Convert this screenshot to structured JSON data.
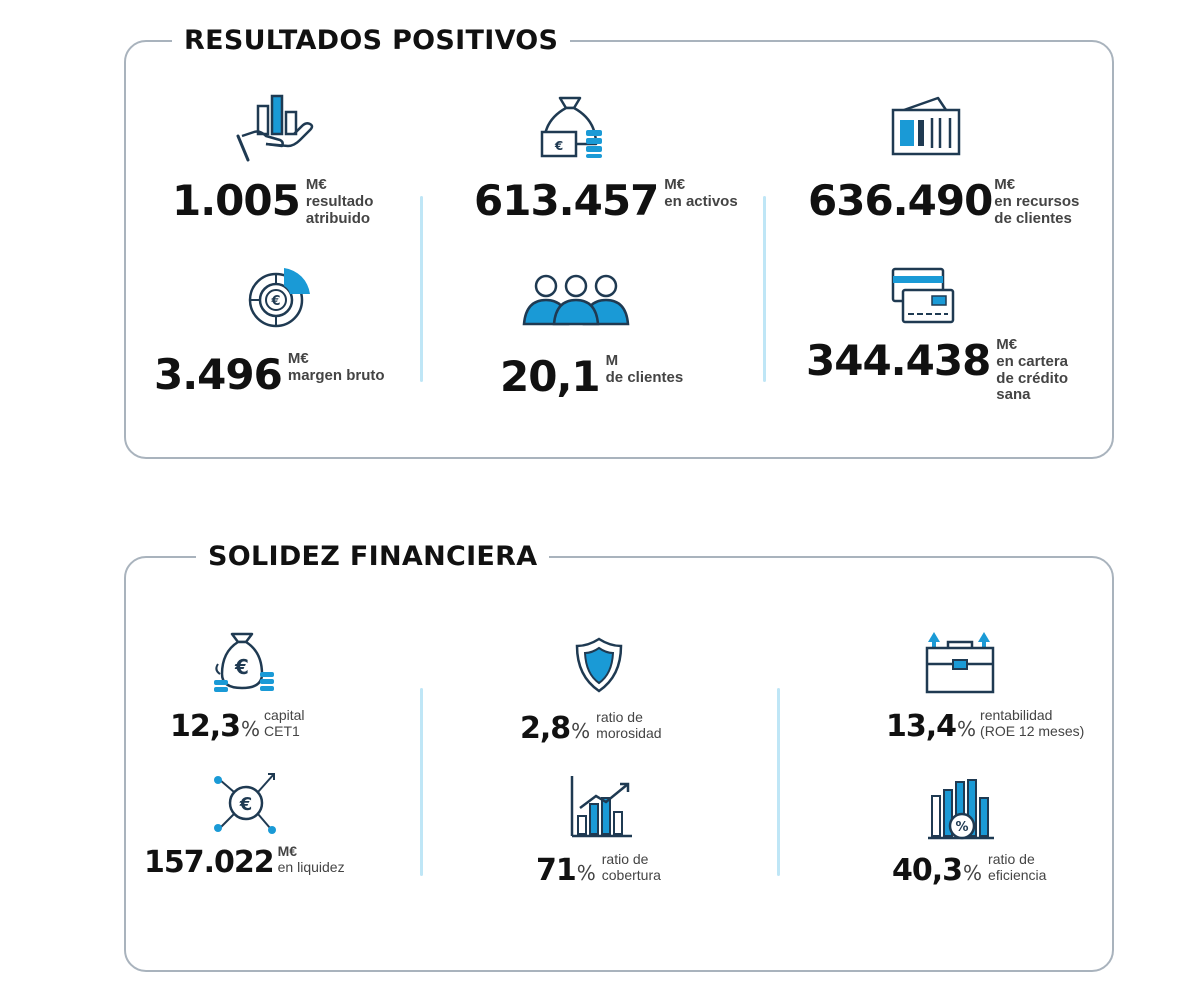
{
  "sections": {
    "resultados": {
      "title": "RESULTADOS POSITIVOS",
      "metrics": {
        "resultado": {
          "value": "1.005",
          "unit": "M€",
          "label1": "resultado",
          "label2": "atribuido",
          "icon": "hand-bar-chart-icon"
        },
        "activos": {
          "value": "613.457",
          "unit": "M€",
          "label1": "en activos",
          "icon": "money-bag-coins-icon"
        },
        "recursos": {
          "value": "636.490",
          "unit": "M€",
          "label1": "en recursos",
          "label2": "de clientes",
          "icon": "wallet-icon"
        },
        "margen": {
          "value": "3.496",
          "unit": "M€",
          "label1": "margen bruto",
          "icon": "euro-donut-chart-icon"
        },
        "clientes": {
          "value": "20,1",
          "unit": "M",
          "label1": "de clientes",
          "icon": "people-group-icon"
        },
        "cartera": {
          "value": "344.438",
          "unit": "M€",
          "label1": "en cartera",
          "label2": "de crédito",
          "label3": "sana",
          "icon": "credit-cards-icon"
        }
      }
    },
    "solidez": {
      "title": "SOLIDEZ FINANCIERA",
      "metrics": {
        "capital": {
          "value": "12,3",
          "unit": "%",
          "label1": "capital",
          "label2": "CET1",
          "icon": "euro-bag-coins-icon"
        },
        "morosidad": {
          "value": "2,8",
          "unit": "%",
          "label1": "ratio de",
          "label2": "morosidad",
          "icon": "shield-icon"
        },
        "rentabilidad": {
          "value": "13,4",
          "unit": "%",
          "label1": "rentabilidad",
          "label2": "(ROE 12 meses)",
          "icon": "briefcase-arrows-icon"
        },
        "liquidez": {
          "value": "157.022",
          "unit": "M€",
          "label1": "en liquidez",
          "icon": "euro-network-icon"
        },
        "cobertura": {
          "value": "71",
          "unit": "%",
          "label1": "ratio de",
          "label2": "cobertura",
          "icon": "growth-chart-icon"
        },
        "eficiencia": {
          "value": "40,3",
          "unit": "%",
          "label1": "ratio de",
          "label2": "eficiencia",
          "icon": "percent-bar-chart-icon"
        }
      }
    }
  },
  "colors": {
    "accent": "#1a9ad6",
    "dark": "#1f3a52",
    "border": "#a9b3bd",
    "divider": "#bfe6f6"
  }
}
